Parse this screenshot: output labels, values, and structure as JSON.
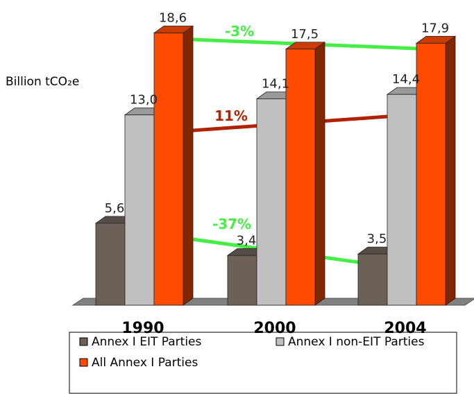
{
  "chart_data": {
    "type": "bar3d",
    "y_label": "Billion tCO₂e",
    "categories": [
      "1990",
      "2000",
      "2004"
    ],
    "series": [
      {
        "name": "Annex I EIT Parties",
        "color": "#6b6157",
        "values": [
          5.6,
          3.4,
          3.5
        ],
        "value_labels": [
          "5,6",
          "3,4",
          "3,5"
        ]
      },
      {
        "name": "Annex I non-EIT Parties",
        "color": "#c0c0c0",
        "values": [
          13.0,
          14.1,
          14.4
        ],
        "value_labels": [
          "13,0",
          "14,1",
          "14,4"
        ]
      },
      {
        "name": "All Annex I Parties",
        "color": "#ff4b00",
        "values": [
          18.6,
          17.5,
          17.9
        ],
        "value_labels": [
          "18,6",
          "17,5",
          "17,9"
        ]
      }
    ],
    "annotations": [
      {
        "text": "-3%",
        "color": "#44ee44"
      },
      {
        "text": "11%",
        "color": "#b22200"
      },
      {
        "text": "-37%",
        "color": "#44ee44"
      }
    ],
    "ylim": [
      0,
      20
    ]
  }
}
